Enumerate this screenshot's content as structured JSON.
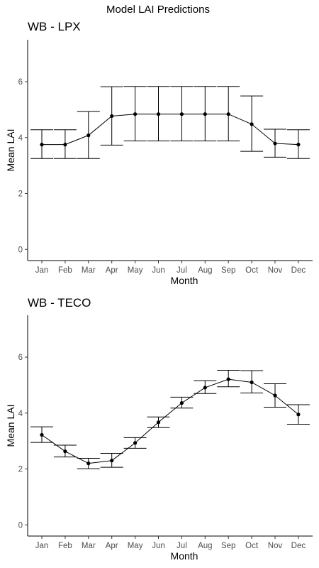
{
  "figure_title": "Model LAI Predictions",
  "chart_data": [
    {
      "type": "line",
      "title": "WB - LPX",
      "xlabel": "Month",
      "ylabel": "Mean LAI",
      "categories": [
        "Jan",
        "Feb",
        "Mar",
        "Apr",
        "May",
        "Jun",
        "Jul",
        "Aug",
        "Sep",
        "Oct",
        "Nov",
        "Dec"
      ],
      "series": [
        {
          "values": [
            3.75,
            3.75,
            4.08,
            4.77,
            4.84,
            4.84,
            4.84,
            4.84,
            4.84,
            4.48,
            3.79,
            3.75
          ],
          "lower": [
            3.25,
            3.25,
            3.25,
            3.73,
            3.88,
            3.88,
            3.88,
            3.88,
            3.88,
            3.51,
            3.3,
            3.25
          ],
          "upper": [
            4.28,
            4.28,
            4.93,
            5.82,
            5.83,
            5.83,
            5.83,
            5.83,
            5.83,
            5.49,
            4.3,
            4.28
          ]
        }
      ],
      "yticks": [
        0,
        2,
        4,
        6
      ],
      "ylim": [
        -0.4,
        7.5
      ],
      "grid": false,
      "markers": true,
      "error_bars": true
    },
    {
      "type": "line",
      "title": "WB - TECO",
      "xlabel": "Month",
      "ylabel": "Mean LAI",
      "categories": [
        "Jan",
        "Feb",
        "Mar",
        "Apr",
        "May",
        "Jun",
        "Jul",
        "Aug",
        "Sep",
        "Oct",
        "Nov",
        "Dec"
      ],
      "series": [
        {
          "values": [
            3.22,
            2.63,
            2.2,
            2.3,
            2.93,
            3.67,
            4.36,
            4.91,
            5.21,
            5.1,
            4.63,
            3.95
          ],
          "lower": [
            2.95,
            2.43,
            2.01,
            2.06,
            2.74,
            3.48,
            4.18,
            4.7,
            4.94,
            4.72,
            4.21,
            3.6
          ],
          "upper": [
            3.51,
            2.85,
            2.38,
            2.56,
            3.12,
            3.86,
            4.57,
            5.16,
            5.53,
            5.52,
            5.05,
            4.3
          ]
        }
      ],
      "yticks": [
        0,
        2,
        4,
        6
      ],
      "ylim": [
        -0.4,
        7.5
      ],
      "grid": false,
      "markers": true,
      "error_bars": true
    }
  ]
}
